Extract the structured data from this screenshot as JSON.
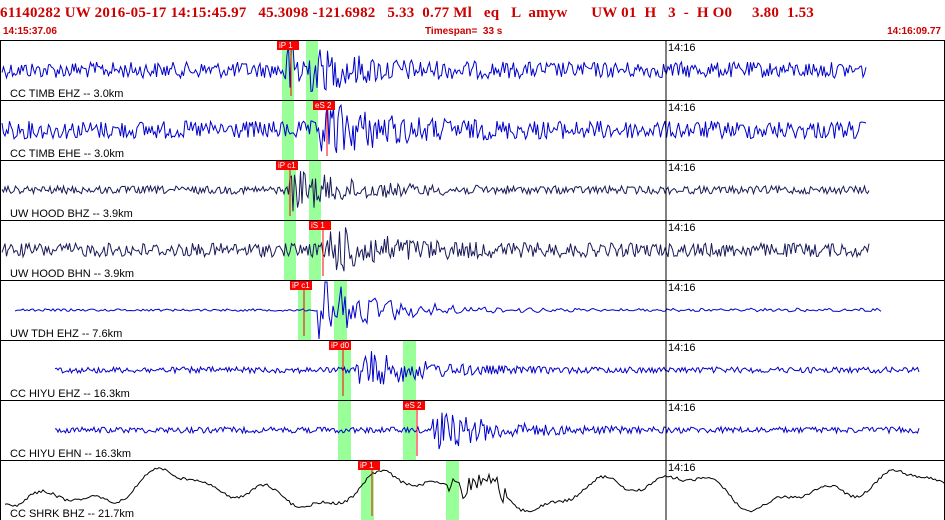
{
  "header": {
    "title_line": "61140282 UW 2016-05-17 14:15:45.97   45.3098 -121.6982   5.33  0.77 Ml   eq   L  amyw      UW 01  H   3  -  H O0     3.80  1.53",
    "start_time": "14:15:37.06",
    "timespan": "Timespan=  33 s",
    "end_time": "14:16:09.77"
  },
  "colors": {
    "header_text": "#cc0000",
    "pick_box": "#ff0000",
    "pick_window": "#99ff99",
    "trace_blue": "#0000cc",
    "trace_dark": "#1a1a5a",
    "trace_black": "#000000"
  },
  "traces": [
    {
      "label": "CC TIMB EHZ -- 3.0km",
      "minute_label": "14:16",
      "picks": [
        {
          "label": "iP 1"
        }
      ],
      "color": "trace_blue"
    },
    {
      "label": "CC TIMB EHE -- 3.0km",
      "minute_label": "14:16",
      "picks": [
        {
          "label": "eS 2"
        }
      ],
      "color": "trace_blue"
    },
    {
      "label": "UW HOOD BHZ -- 3.9km",
      "minute_label": "14:16",
      "picks": [
        {
          "label": "iP c1"
        }
      ],
      "color": "trace_dark"
    },
    {
      "label": "UW HOOD BHN -- 3.9km",
      "minute_label": "14:16",
      "picks": [
        {
          "label": "iS 1"
        }
      ],
      "color": "trace_dark"
    },
    {
      "label": "UW TDH EHZ -- 7.6km",
      "minute_label": "14:16",
      "picks": [
        {
          "label": "iP c1"
        }
      ],
      "color": "trace_blue"
    },
    {
      "label": "CC HIYU EHZ -- 16.3km",
      "minute_label": "14:16",
      "picks": [
        {
          "label": "iP d0"
        }
      ],
      "color": "trace_blue"
    },
    {
      "label": "CC HIYU EHN -- 16.3km",
      "minute_label": "14:16",
      "picks": [
        {
          "label": "eS 2"
        }
      ],
      "color": "trace_blue"
    },
    {
      "label": "CC SHRK BHZ -- 21.7km",
      "minute_label": "14:16",
      "picks": [
        {
          "label": "iP 1"
        }
      ],
      "color": "trace_black"
    }
  ]
}
